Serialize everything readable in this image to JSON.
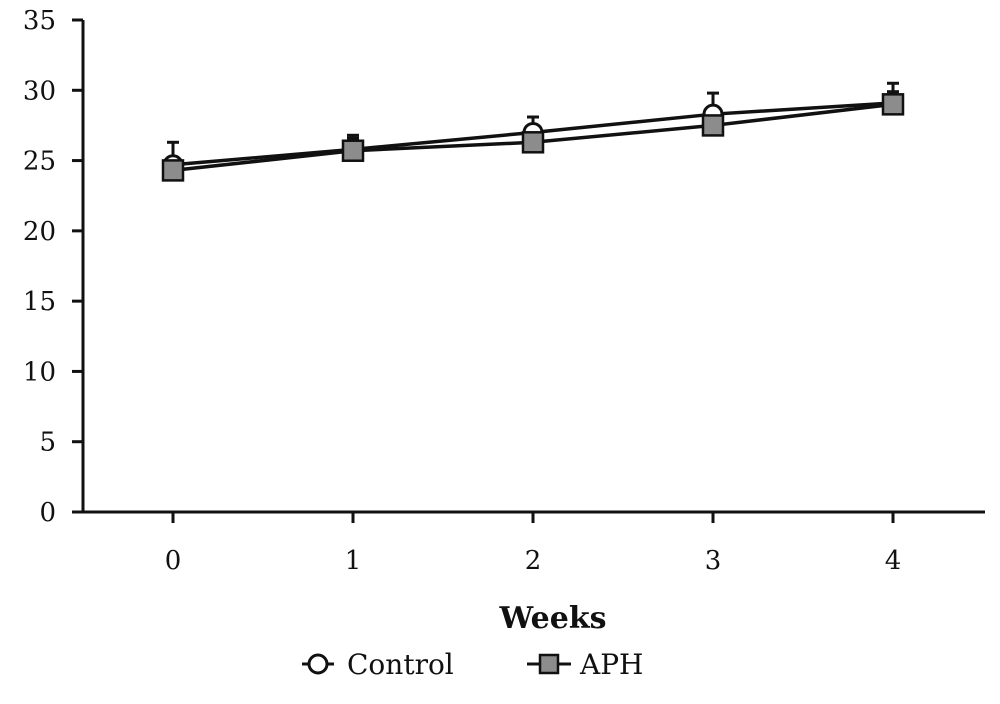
{
  "chart_data": {
    "type": "line",
    "x": [
      0,
      1,
      2,
      3,
      4
    ],
    "xlabel": "Weeks",
    "ylabel": "",
    "ylim": [
      0,
      35
    ],
    "yticks": [
      0,
      5,
      10,
      15,
      20,
      25,
      30,
      35
    ],
    "grid": false,
    "legend_position": "bottom",
    "series": [
      {
        "name": "Control",
        "marker": "open-circle",
        "color": "#111111",
        "values": [
          24.7,
          25.8,
          27.0,
          28.3,
          29.1
        ],
        "error": [
          1.6,
          0.8,
          1.1,
          1.5,
          1.4
        ]
      },
      {
        "name": "APH",
        "marker": "square",
        "color": "#111111",
        "fill": "#8c8c8c",
        "values": [
          24.3,
          25.7,
          26.3,
          27.5,
          29.0
        ],
        "error": [
          0.6,
          1.1,
          0.6,
          0.6,
          0.9
        ]
      }
    ]
  }
}
